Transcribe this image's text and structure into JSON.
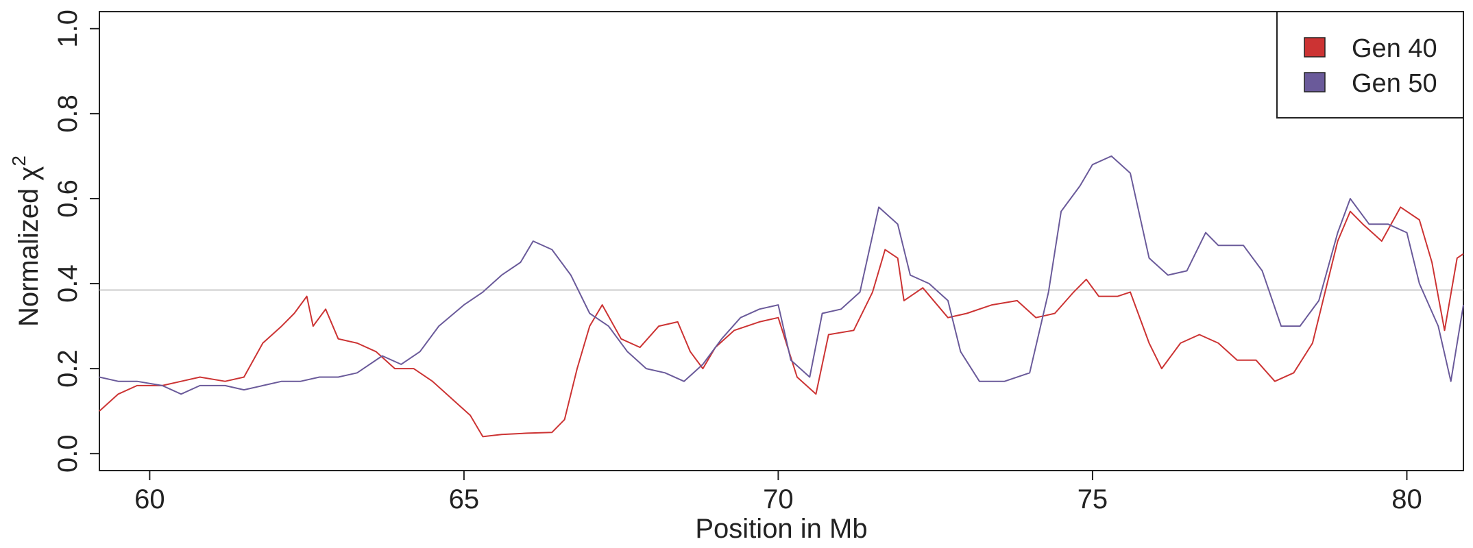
{
  "chart_data": {
    "type": "line",
    "title": "",
    "xlabel": "Position in Mb",
    "ylabel_main": "Normalized χ",
    "ylabel_sup": "2",
    "xlim": [
      59.2,
      80.9
    ],
    "ylim": [
      -0.04,
      1.04
    ],
    "x_ticks": [
      60,
      65,
      70,
      75,
      80
    ],
    "y_ticks": [
      0.0,
      0.2,
      0.4,
      0.6,
      0.8,
      1.0
    ],
    "x_tick_labels": [
      "60",
      "65",
      "70",
      "75",
      "80"
    ],
    "y_tick_labels": [
      "0.0",
      "0.2",
      "0.4",
      "0.6",
      "0.8",
      "1.0"
    ],
    "threshold": 0.385,
    "threshold_color": "#b8b8b8",
    "legend_position": "top-right",
    "series": [
      {
        "name": "Gen 40",
        "color": "#cc3333",
        "points": [
          [
            59.2,
            0.1
          ],
          [
            59.5,
            0.14
          ],
          [
            59.8,
            0.16
          ],
          [
            60.2,
            0.16
          ],
          [
            60.5,
            0.17
          ],
          [
            60.8,
            0.18
          ],
          [
            61.2,
            0.17
          ],
          [
            61.5,
            0.18
          ],
          [
            61.8,
            0.26
          ],
          [
            62.1,
            0.3
          ],
          [
            62.3,
            0.33
          ],
          [
            62.5,
            0.37
          ],
          [
            62.6,
            0.3
          ],
          [
            62.8,
            0.34
          ],
          [
            63.0,
            0.27
          ],
          [
            63.3,
            0.26
          ],
          [
            63.6,
            0.24
          ],
          [
            63.9,
            0.2
          ],
          [
            64.2,
            0.2
          ],
          [
            64.5,
            0.17
          ],
          [
            64.8,
            0.13
          ],
          [
            65.1,
            0.09
          ],
          [
            65.3,
            0.04
          ],
          [
            65.6,
            0.045
          ],
          [
            66.0,
            0.048
          ],
          [
            66.4,
            0.05
          ],
          [
            66.6,
            0.08
          ],
          [
            66.8,
            0.2
          ],
          [
            67.0,
            0.3
          ],
          [
            67.2,
            0.35
          ],
          [
            67.5,
            0.27
          ],
          [
            67.8,
            0.25
          ],
          [
            68.1,
            0.3
          ],
          [
            68.4,
            0.31
          ],
          [
            68.6,
            0.24
          ],
          [
            68.8,
            0.2
          ],
          [
            69.0,
            0.25
          ],
          [
            69.3,
            0.29
          ],
          [
            69.7,
            0.31
          ],
          [
            70.0,
            0.32
          ],
          [
            70.3,
            0.18
          ],
          [
            70.6,
            0.14
          ],
          [
            70.8,
            0.28
          ],
          [
            71.2,
            0.29
          ],
          [
            71.5,
            0.38
          ],
          [
            71.7,
            0.48
          ],
          [
            71.9,
            0.46
          ],
          [
            72.0,
            0.36
          ],
          [
            72.3,
            0.39
          ],
          [
            72.7,
            0.32
          ],
          [
            73.0,
            0.33
          ],
          [
            73.4,
            0.35
          ],
          [
            73.8,
            0.36
          ],
          [
            74.1,
            0.32
          ],
          [
            74.4,
            0.33
          ],
          [
            74.7,
            0.38
          ],
          [
            74.9,
            0.41
          ],
          [
            75.1,
            0.37
          ],
          [
            75.4,
            0.37
          ],
          [
            75.6,
            0.38
          ],
          [
            75.9,
            0.26
          ],
          [
            76.1,
            0.2
          ],
          [
            76.4,
            0.26
          ],
          [
            76.7,
            0.28
          ],
          [
            77.0,
            0.26
          ],
          [
            77.3,
            0.22
          ],
          [
            77.6,
            0.22
          ],
          [
            77.9,
            0.17
          ],
          [
            78.2,
            0.19
          ],
          [
            78.5,
            0.26
          ],
          [
            78.7,
            0.38
          ],
          [
            78.9,
            0.5
          ],
          [
            79.1,
            0.57
          ],
          [
            79.3,
            0.54
          ],
          [
            79.6,
            0.5
          ],
          [
            79.9,
            0.58
          ],
          [
            80.2,
            0.55
          ],
          [
            80.4,
            0.45
          ],
          [
            80.6,
            0.29
          ],
          [
            80.8,
            0.46
          ],
          [
            80.9,
            0.47
          ]
        ]
      },
      {
        "name": "Gen 50",
        "color": "#6a5a9a",
        "points": [
          [
            59.2,
            0.18
          ],
          [
            59.5,
            0.17
          ],
          [
            59.8,
            0.17
          ],
          [
            60.2,
            0.16
          ],
          [
            60.5,
            0.14
          ],
          [
            60.8,
            0.16
          ],
          [
            61.2,
            0.16
          ],
          [
            61.5,
            0.15
          ],
          [
            61.8,
            0.16
          ],
          [
            62.1,
            0.17
          ],
          [
            62.4,
            0.17
          ],
          [
            62.7,
            0.18
          ],
          [
            63.0,
            0.18
          ],
          [
            63.3,
            0.19
          ],
          [
            63.7,
            0.23
          ],
          [
            64.0,
            0.21
          ],
          [
            64.3,
            0.24
          ],
          [
            64.6,
            0.3
          ],
          [
            65.0,
            0.35
          ],
          [
            65.3,
            0.38
          ],
          [
            65.6,
            0.42
          ],
          [
            65.9,
            0.45
          ],
          [
            66.1,
            0.5
          ],
          [
            66.4,
            0.48
          ],
          [
            66.7,
            0.42
          ],
          [
            67.0,
            0.33
          ],
          [
            67.3,
            0.3
          ],
          [
            67.6,
            0.24
          ],
          [
            67.9,
            0.2
          ],
          [
            68.2,
            0.19
          ],
          [
            68.5,
            0.17
          ],
          [
            68.8,
            0.21
          ],
          [
            69.1,
            0.27
          ],
          [
            69.4,
            0.32
          ],
          [
            69.7,
            0.34
          ],
          [
            70.0,
            0.35
          ],
          [
            70.2,
            0.22
          ],
          [
            70.5,
            0.18
          ],
          [
            70.7,
            0.33
          ],
          [
            71.0,
            0.34
          ],
          [
            71.3,
            0.38
          ],
          [
            71.6,
            0.58
          ],
          [
            71.9,
            0.54
          ],
          [
            72.1,
            0.42
          ],
          [
            72.4,
            0.4
          ],
          [
            72.7,
            0.36
          ],
          [
            72.9,
            0.24
          ],
          [
            73.2,
            0.17
          ],
          [
            73.6,
            0.17
          ],
          [
            74.0,
            0.19
          ],
          [
            74.3,
            0.38
          ],
          [
            74.5,
            0.57
          ],
          [
            74.8,
            0.63
          ],
          [
            75.0,
            0.68
          ],
          [
            75.3,
            0.7
          ],
          [
            75.6,
            0.66
          ],
          [
            75.9,
            0.46
          ],
          [
            76.2,
            0.42
          ],
          [
            76.5,
            0.43
          ],
          [
            76.8,
            0.52
          ],
          [
            77.0,
            0.49
          ],
          [
            77.4,
            0.49
          ],
          [
            77.7,
            0.43
          ],
          [
            78.0,
            0.3
          ],
          [
            78.3,
            0.3
          ],
          [
            78.6,
            0.36
          ],
          [
            78.9,
            0.52
          ],
          [
            79.1,
            0.6
          ],
          [
            79.4,
            0.54
          ],
          [
            79.7,
            0.54
          ],
          [
            80.0,
            0.52
          ],
          [
            80.2,
            0.4
          ],
          [
            80.5,
            0.3
          ],
          [
            80.7,
            0.17
          ],
          [
            80.9,
            0.35
          ]
        ]
      }
    ]
  }
}
